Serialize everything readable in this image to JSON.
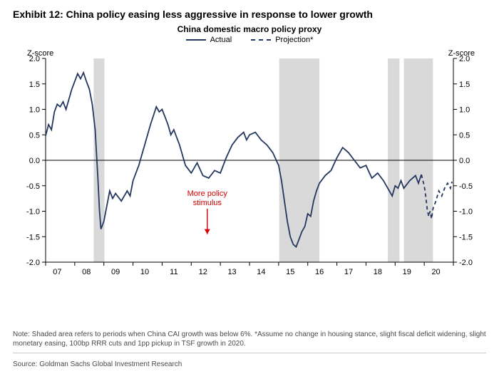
{
  "title": "Exhibit 12: China policy easing less aggressive in response to lower growth",
  "subtitle": "China domestic macro policy proxy",
  "legend": {
    "actual": "Actual",
    "projection": "Projection*"
  },
  "axis": {
    "y_label_left": "Z-score",
    "y_label_right": "Z-score",
    "ylim": [
      -2.0,
      2.0
    ],
    "ytick_step": 0.5,
    "x_labels": [
      "07",
      "08",
      "09",
      "10",
      "11",
      "12",
      "13",
      "14",
      "15",
      "16",
      "17",
      "18",
      "19",
      "20"
    ],
    "x_count": 14
  },
  "colors": {
    "line": "#24375f",
    "shade": "#d9d9d9",
    "grid_zero": "#000000",
    "axis": "#000000",
    "annotation": "#d40000",
    "background": "#ffffff"
  },
  "shaded_regions": [
    {
      "start": 1.65,
      "end": 2.02
    },
    {
      "start": 8.02,
      "end": 9.4
    },
    {
      "start": 11.75,
      "end": 12.15
    },
    {
      "start": 12.3,
      "end": 13.3
    }
  ],
  "series_actual": [
    [
      0.0,
      0.48
    ],
    [
      0.1,
      0.7
    ],
    [
      0.2,
      0.6
    ],
    [
      0.3,
      0.95
    ],
    [
      0.4,
      1.1
    ],
    [
      0.5,
      1.05
    ],
    [
      0.6,
      1.15
    ],
    [
      0.7,
      1.0
    ],
    [
      0.8,
      1.2
    ],
    [
      0.9,
      1.4
    ],
    [
      1.0,
      1.55
    ],
    [
      1.1,
      1.7
    ],
    [
      1.2,
      1.6
    ],
    [
      1.3,
      1.72
    ],
    [
      1.4,
      1.55
    ],
    [
      1.5,
      1.4
    ],
    [
      1.6,
      1.1
    ],
    [
      1.7,
      0.6
    ],
    [
      1.8,
      -0.4
    ],
    [
      1.85,
      -1.0
    ],
    [
      1.9,
      -1.35
    ],
    [
      2.0,
      -1.2
    ],
    [
      2.1,
      -0.9
    ],
    [
      2.2,
      -0.6
    ],
    [
      2.3,
      -0.75
    ],
    [
      2.4,
      -0.65
    ],
    [
      2.6,
      -0.8
    ],
    [
      2.8,
      -0.6
    ],
    [
      2.9,
      -0.7
    ],
    [
      3.0,
      -0.4
    ],
    [
      3.2,
      -0.1
    ],
    [
      3.4,
      0.3
    ],
    [
      3.6,
      0.7
    ],
    [
      3.8,
      1.05
    ],
    [
      3.9,
      0.95
    ],
    [
      4.0,
      1.0
    ],
    [
      4.1,
      0.85
    ],
    [
      4.2,
      0.7
    ],
    [
      4.3,
      0.5
    ],
    [
      4.4,
      0.6
    ],
    [
      4.6,
      0.3
    ],
    [
      4.8,
      -0.1
    ],
    [
      5.0,
      -0.25
    ],
    [
      5.2,
      -0.05
    ],
    [
      5.4,
      -0.3
    ],
    [
      5.6,
      -0.35
    ],
    [
      5.8,
      -0.2
    ],
    [
      6.0,
      -0.25
    ],
    [
      6.2,
      0.05
    ],
    [
      6.4,
      0.3
    ],
    [
      6.6,
      0.45
    ],
    [
      6.8,
      0.55
    ],
    [
      6.9,
      0.4
    ],
    [
      7.0,
      0.5
    ],
    [
      7.2,
      0.55
    ],
    [
      7.4,
      0.4
    ],
    [
      7.6,
      0.3
    ],
    [
      7.8,
      0.15
    ],
    [
      8.0,
      -0.1
    ],
    [
      8.1,
      -0.4
    ],
    [
      8.2,
      -0.8
    ],
    [
      8.3,
      -1.2
    ],
    [
      8.4,
      -1.5
    ],
    [
      8.5,
      -1.65
    ],
    [
      8.6,
      -1.7
    ],
    [
      8.7,
      -1.55
    ],
    [
      8.8,
      -1.4
    ],
    [
      8.9,
      -1.3
    ],
    [
      9.0,
      -1.05
    ],
    [
      9.1,
      -1.1
    ],
    [
      9.2,
      -0.8
    ],
    [
      9.3,
      -0.6
    ],
    [
      9.4,
      -0.45
    ],
    [
      9.6,
      -0.3
    ],
    [
      9.8,
      -0.2
    ],
    [
      10.0,
      0.05
    ],
    [
      10.2,
      0.25
    ],
    [
      10.4,
      0.15
    ],
    [
      10.6,
      0.0
    ],
    [
      10.8,
      -0.15
    ],
    [
      11.0,
      -0.1
    ],
    [
      11.2,
      -0.35
    ],
    [
      11.4,
      -0.25
    ],
    [
      11.6,
      -0.4
    ],
    [
      11.8,
      -0.6
    ],
    [
      11.9,
      -0.7
    ],
    [
      12.0,
      -0.5
    ],
    [
      12.1,
      -0.55
    ],
    [
      12.2,
      -0.4
    ],
    [
      12.3,
      -0.55
    ],
    [
      12.5,
      -0.4
    ],
    [
      12.7,
      -0.3
    ],
    [
      12.8,
      -0.45
    ],
    [
      12.9,
      -0.28
    ]
  ],
  "series_projection": [
    [
      12.9,
      -0.28
    ],
    [
      13.0,
      -0.5
    ],
    [
      13.05,
      -0.7
    ],
    [
      13.1,
      -0.95
    ],
    [
      13.15,
      -1.1
    ],
    [
      13.2,
      -1.0
    ],
    [
      13.25,
      -1.15
    ],
    [
      13.3,
      -0.95
    ],
    [
      13.4,
      -0.8
    ],
    [
      13.5,
      -0.6
    ],
    [
      13.6,
      -0.7
    ],
    [
      13.7,
      -0.55
    ],
    [
      13.8,
      -0.45
    ],
    [
      13.9,
      -0.55
    ],
    [
      13.95,
      -0.42
    ]
  ],
  "annotation": {
    "text_line1": "More policy",
    "text_line2": "stimulus",
    "x": 5.55,
    "y_text": -0.7,
    "arrow_from_y": -0.95,
    "arrow_to_y": -1.45
  },
  "note": "Note: Shaded area refers to periods when China CAI growth was below 6%. *Assume no change in housing stance, slight fiscal deficit widening, slight monetary easing, 100bp RRR cuts and 1pp pickup in TSF growth in 2020.",
  "source": "Source: Goldman Sachs Global Investment Research"
}
